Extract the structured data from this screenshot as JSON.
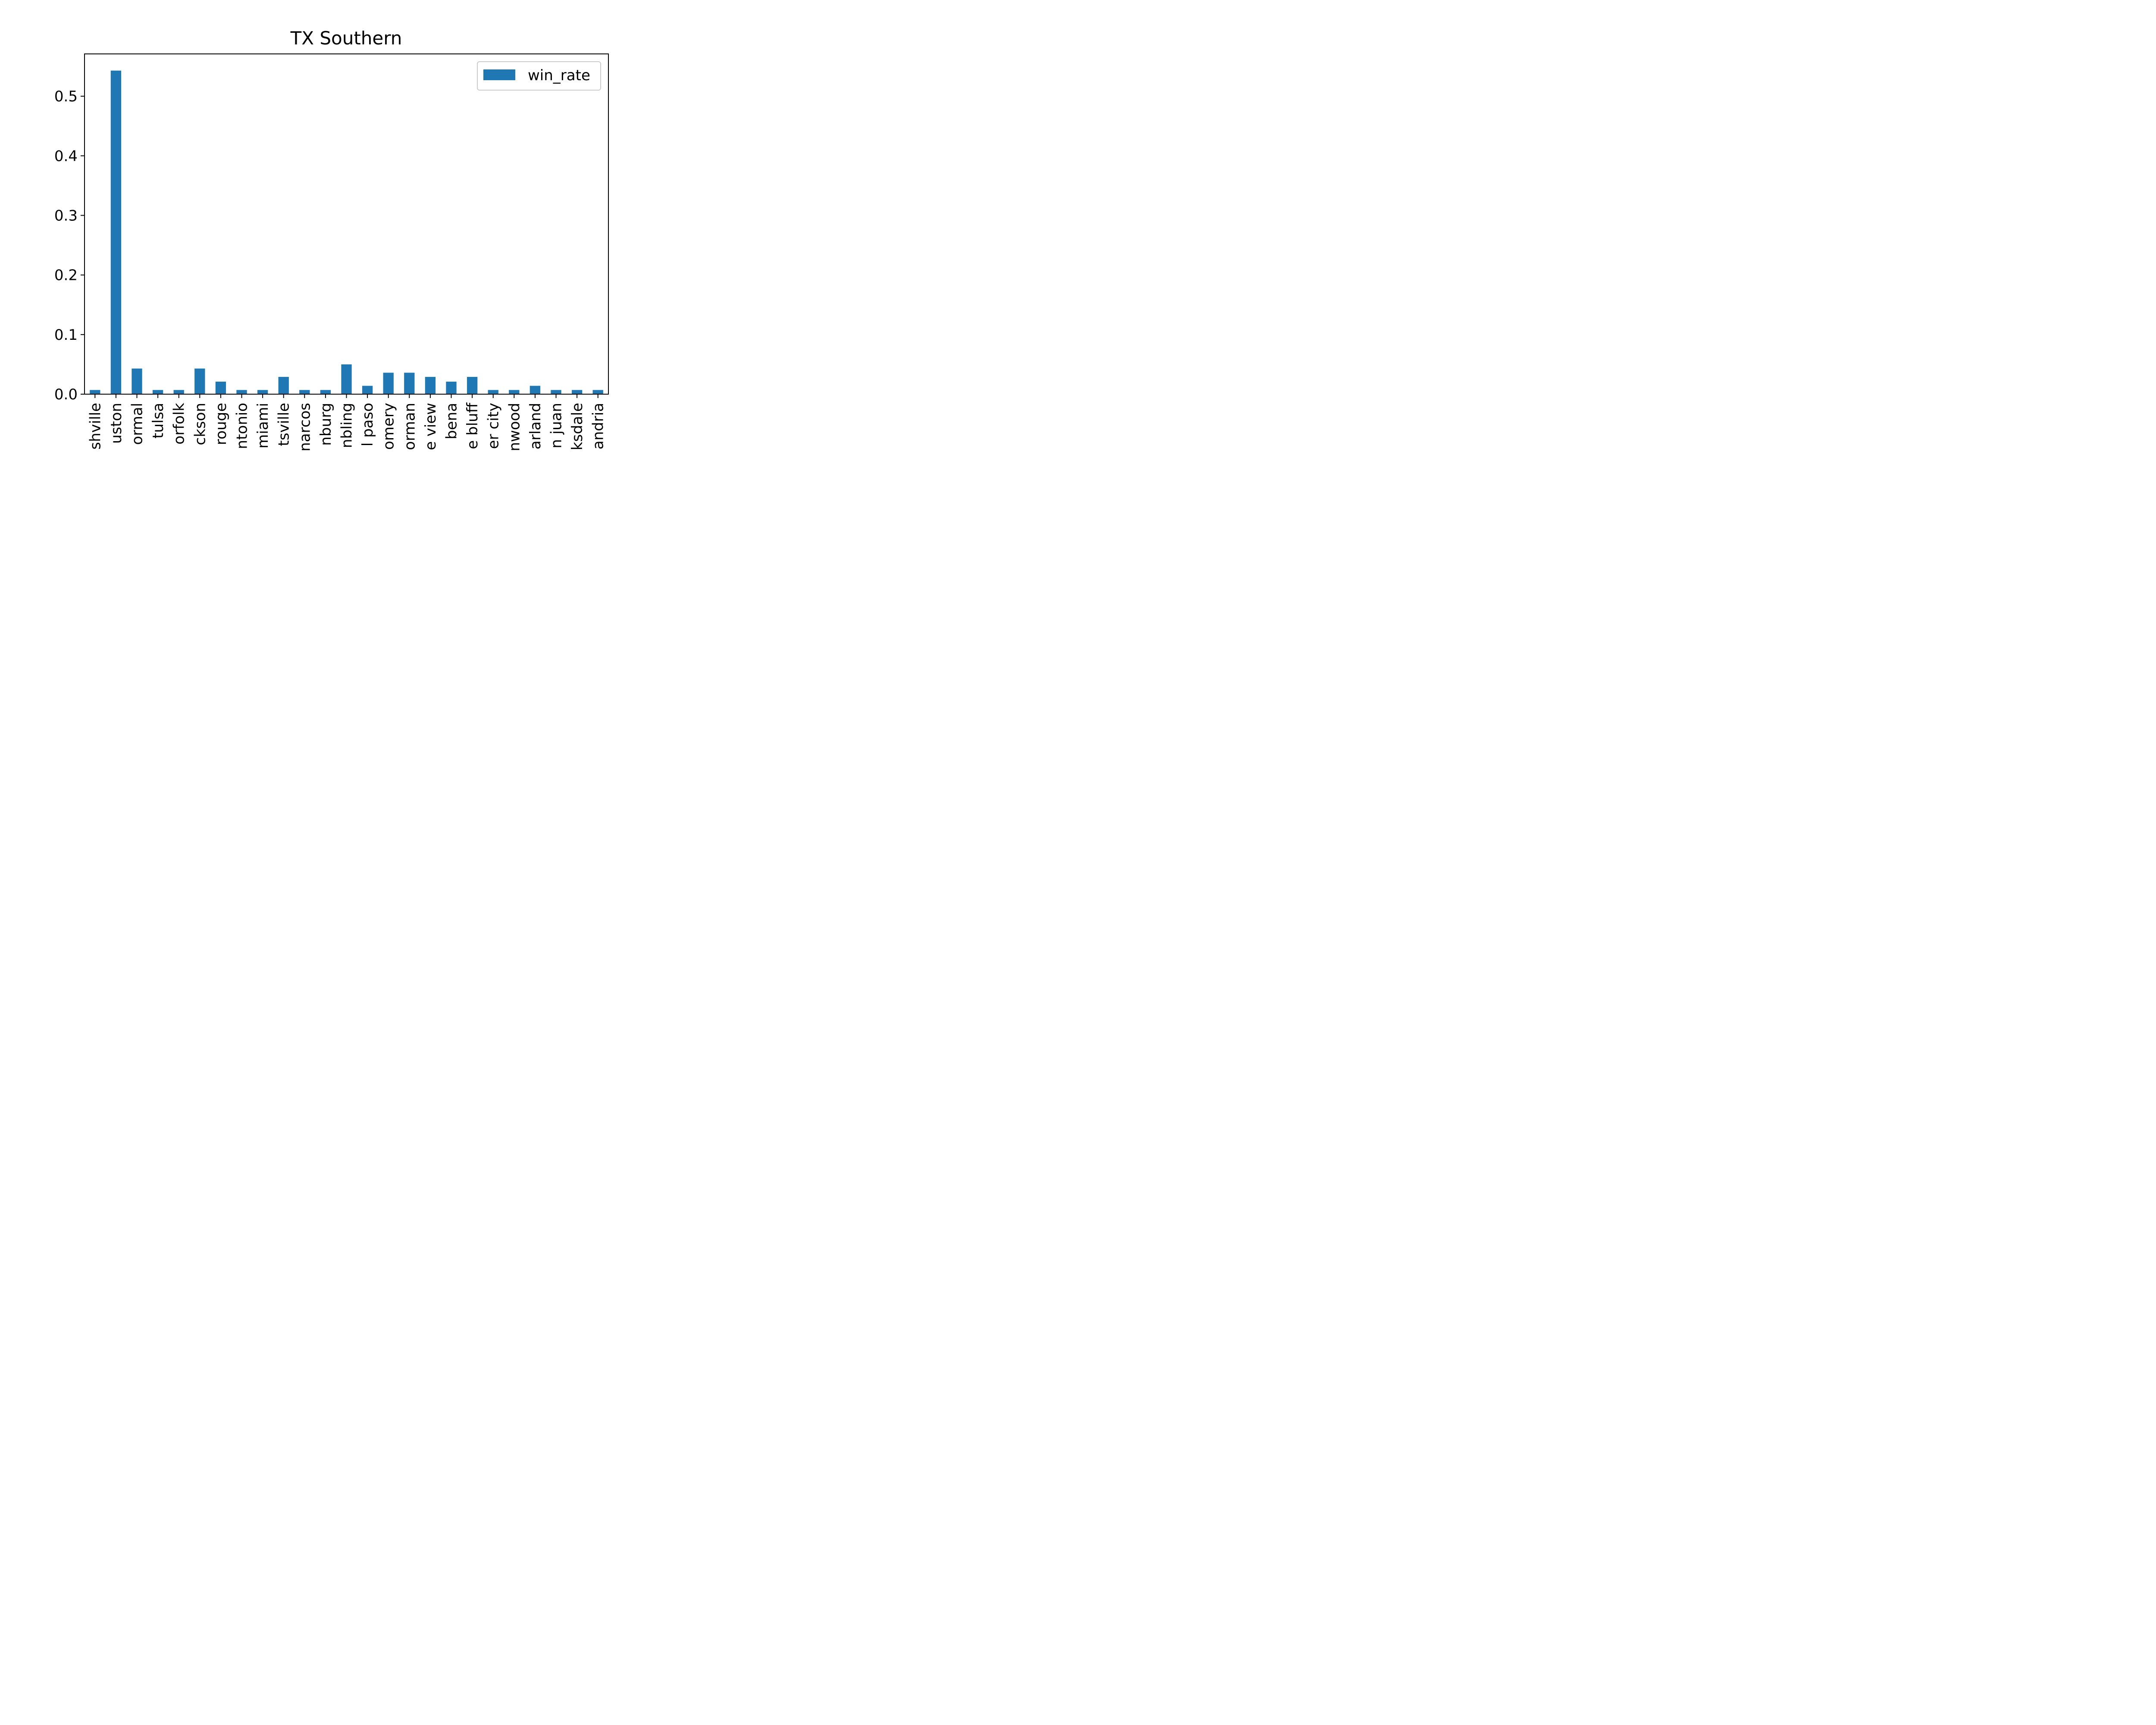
{
  "chart_data": {
    "type": "bar",
    "title": "TX Southern",
    "xlabel": "",
    "ylabel": "",
    "ylim": [
      0,
      0.571
    ],
    "yticks": [
      0.0,
      0.1,
      0.2,
      0.3,
      0.4,
      0.5
    ],
    "ytick_labels": [
      "0.0",
      "0.1",
      "0.2",
      "0.3",
      "0.4",
      "0.5"
    ],
    "categories": [
      "shville",
      "uston",
      "ormal",
      "tulsa",
      "orfolk",
      "ckson",
      "rouge",
      "ntonio",
      "miami",
      "tsville",
      "narcos",
      "nburg",
      "nbling",
      "l paso",
      "omery",
      "orman",
      "e view",
      "bena",
      "e bluff",
      "er city",
      "nwood",
      "arland",
      "n juan",
      "ksdale",
      "andria"
    ],
    "series": [
      {
        "name": "win_rate",
        "color": "#1f77b4",
        "values": [
          0.007,
          0.543,
          0.043,
          0.007,
          0.007,
          0.043,
          0.021,
          0.007,
          0.007,
          0.029,
          0.007,
          0.007,
          0.05,
          0.014,
          0.036,
          0.036,
          0.029,
          0.021,
          0.029,
          0.007,
          0.007,
          0.014,
          0.007,
          0.007,
          0.007
        ]
      }
    ],
    "legend": {
      "position": "top-right",
      "label": "win_rate"
    },
    "grid": false
  }
}
